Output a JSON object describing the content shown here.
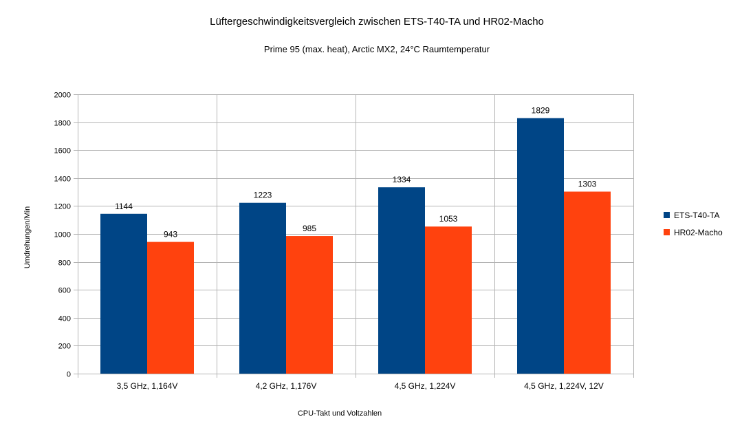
{
  "chart_data": {
    "type": "bar",
    "title": "Lüftergeschwindigkeitsvergleich zwischen ETS-T40-TA und HR02-Macho",
    "subtitle": "Prime 95 (max. heat), Arctic MX2, 24°C Raumtemperatur",
    "xlabel": "CPU-Takt und Voltzahlen",
    "ylabel": "Umdrehungen/Min",
    "ylim": [
      0,
      2000
    ],
    "ytick_step": 200,
    "grid": true,
    "legend_position": "right",
    "categories": [
      "3,5 GHz, 1,164V",
      "4,2 GHz, 1,176V",
      "4,5 GHz, 1,224V",
      "4,5 GHz, 1,224V, 12V"
    ],
    "series": [
      {
        "name": "ETS-T40-TA",
        "color": "#004586",
        "values": [
          1144,
          1223,
          1334,
          1829
        ]
      },
      {
        "name": "HR02-Macho",
        "color": "#ff420e",
        "values": [
          943,
          985,
          1053,
          1303
        ]
      }
    ]
  }
}
